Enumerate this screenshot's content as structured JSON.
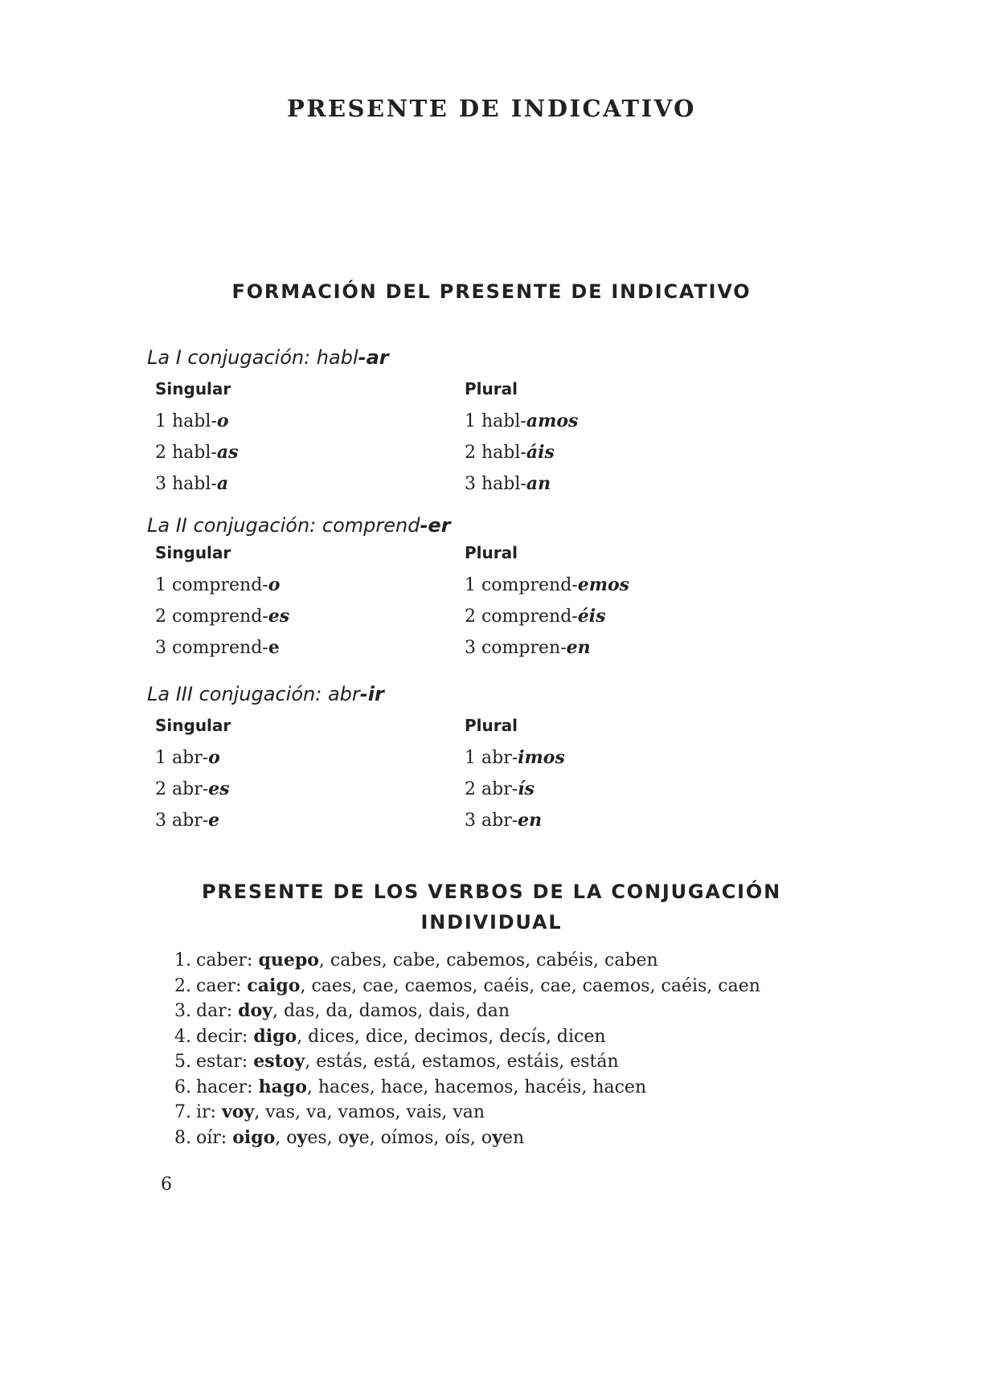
{
  "title": "PRESENTE DE INDICATIVO",
  "section1": {
    "heading": "FORMACIÓN DEL PRESENTE DE INDICATIVO",
    "conjugations": [
      {
        "label": "La I conjugación: habl",
        "ending": "-ar",
        "singular_label": "Singular",
        "plural_label": "Plural",
        "singular": [
          [
            [
              "1 habl-",
              ""
            ],
            [
              "o",
              "bi"
            ]
          ],
          [
            [
              "2 habl-",
              ""
            ],
            [
              "as",
              "bi"
            ]
          ],
          [
            [
              "3 habl-",
              ""
            ],
            [
              "a",
              "bi"
            ]
          ]
        ],
        "plural": [
          [
            [
              "1 habl-",
              ""
            ],
            [
              "amos",
              "bi"
            ]
          ],
          [
            [
              "2 habl-",
              ""
            ],
            [
              "áis",
              "bi"
            ]
          ],
          [
            [
              "3 habl-",
              ""
            ],
            [
              "an",
              "bi"
            ]
          ]
        ]
      },
      {
        "label": "La II conjugación: comprend",
        "ending": "-er",
        "singular_label": "Singular",
        "plural_label": "Plural",
        "singular": [
          [
            [
              "1 comprend-",
              ""
            ],
            [
              "o",
              "bi"
            ]
          ],
          [
            [
              "2 comprend-",
              ""
            ],
            [
              "es",
              "bi"
            ]
          ],
          [
            [
              "3 comprend-",
              ""
            ],
            [
              "e",
              "b"
            ]
          ]
        ],
        "plural": [
          [
            [
              "1 comprend-",
              ""
            ],
            [
              "emos",
              "bi"
            ]
          ],
          [
            [
              "2 comprend-",
              ""
            ],
            [
              "éis",
              "bi"
            ]
          ],
          [
            [
              "3 compren-",
              ""
            ],
            [
              "en",
              "bi"
            ]
          ]
        ]
      },
      {
        "label": "La III conjugación: abr",
        "ending": "-ir",
        "singular_label": "Singular",
        "plural_label": "Plural",
        "singular": [
          [
            [
              "1 abr-",
              ""
            ],
            [
              "o",
              "bi"
            ]
          ],
          [
            [
              "2 abr-",
              ""
            ],
            [
              "es",
              "bi"
            ]
          ],
          [
            [
              "3 abr-",
              ""
            ],
            [
              "e",
              "bi"
            ]
          ]
        ],
        "plural": [
          [
            [
              "1 abr-",
              ""
            ],
            [
              "imos",
              "bi"
            ]
          ],
          [
            [
              "2 abr-",
              ""
            ],
            [
              "ís",
              "bi"
            ]
          ],
          [
            [
              "3 abr-",
              ""
            ],
            [
              "en",
              "bi"
            ]
          ]
        ]
      }
    ]
  },
  "section2": {
    "heading_line1": "PRESENTE DE LOS VERBOS DE LA CONJUGACIÓN",
    "heading_line2": "INDIVIDUAL",
    "items": [
      {
        "num": "1.",
        "parts": [
          [
            "caber: ",
            ""
          ],
          [
            "quepo",
            "b"
          ],
          [
            ", cabes, cabe, cabemos, cabéis, caben",
            ""
          ]
        ]
      },
      {
        "num": "2.",
        "parts": [
          [
            "caer: ",
            ""
          ],
          [
            "caigo",
            "b"
          ],
          [
            ", caes, cae, caemos, caéis, cae, caemos, caéis, caen",
            ""
          ]
        ]
      },
      {
        "num": "3.",
        "parts": [
          [
            "dar: ",
            ""
          ],
          [
            "doy",
            "b"
          ],
          [
            ", das, da, damos, dais, dan",
            ""
          ]
        ]
      },
      {
        "num": "4.",
        "parts": [
          [
            "decir: ",
            ""
          ],
          [
            "digo",
            "b"
          ],
          [
            ", dices, dice, decimos, decís, dicen",
            ""
          ]
        ]
      },
      {
        "num": "5.",
        "parts": [
          [
            "estar: ",
            ""
          ],
          [
            "estoy",
            "b"
          ],
          [
            ", estás, está, estamos, estáis, están",
            ""
          ]
        ]
      },
      {
        "num": "6.",
        "parts": [
          [
            "hacer: ",
            ""
          ],
          [
            "hago",
            "b"
          ],
          [
            ", haces, hace, hacemos, hacéis, hacen",
            ""
          ]
        ]
      },
      {
        "num": "7.",
        "parts": [
          [
            "ir: ",
            ""
          ],
          [
            "voy",
            "b"
          ],
          [
            ", vas, va, vamos, vais, van",
            ""
          ]
        ]
      },
      {
        "num": "8.",
        "parts": [
          [
            "oír: ",
            ""
          ],
          [
            "oigo",
            "b"
          ],
          [
            ", o",
            ""
          ],
          [
            "y",
            "b"
          ],
          [
            "es, o",
            ""
          ],
          [
            "y",
            "b"
          ],
          [
            "e, oímos, oís, o",
            ""
          ],
          [
            "y",
            "b"
          ],
          [
            "en",
            ""
          ]
        ]
      }
    ]
  },
  "page_number": "6"
}
